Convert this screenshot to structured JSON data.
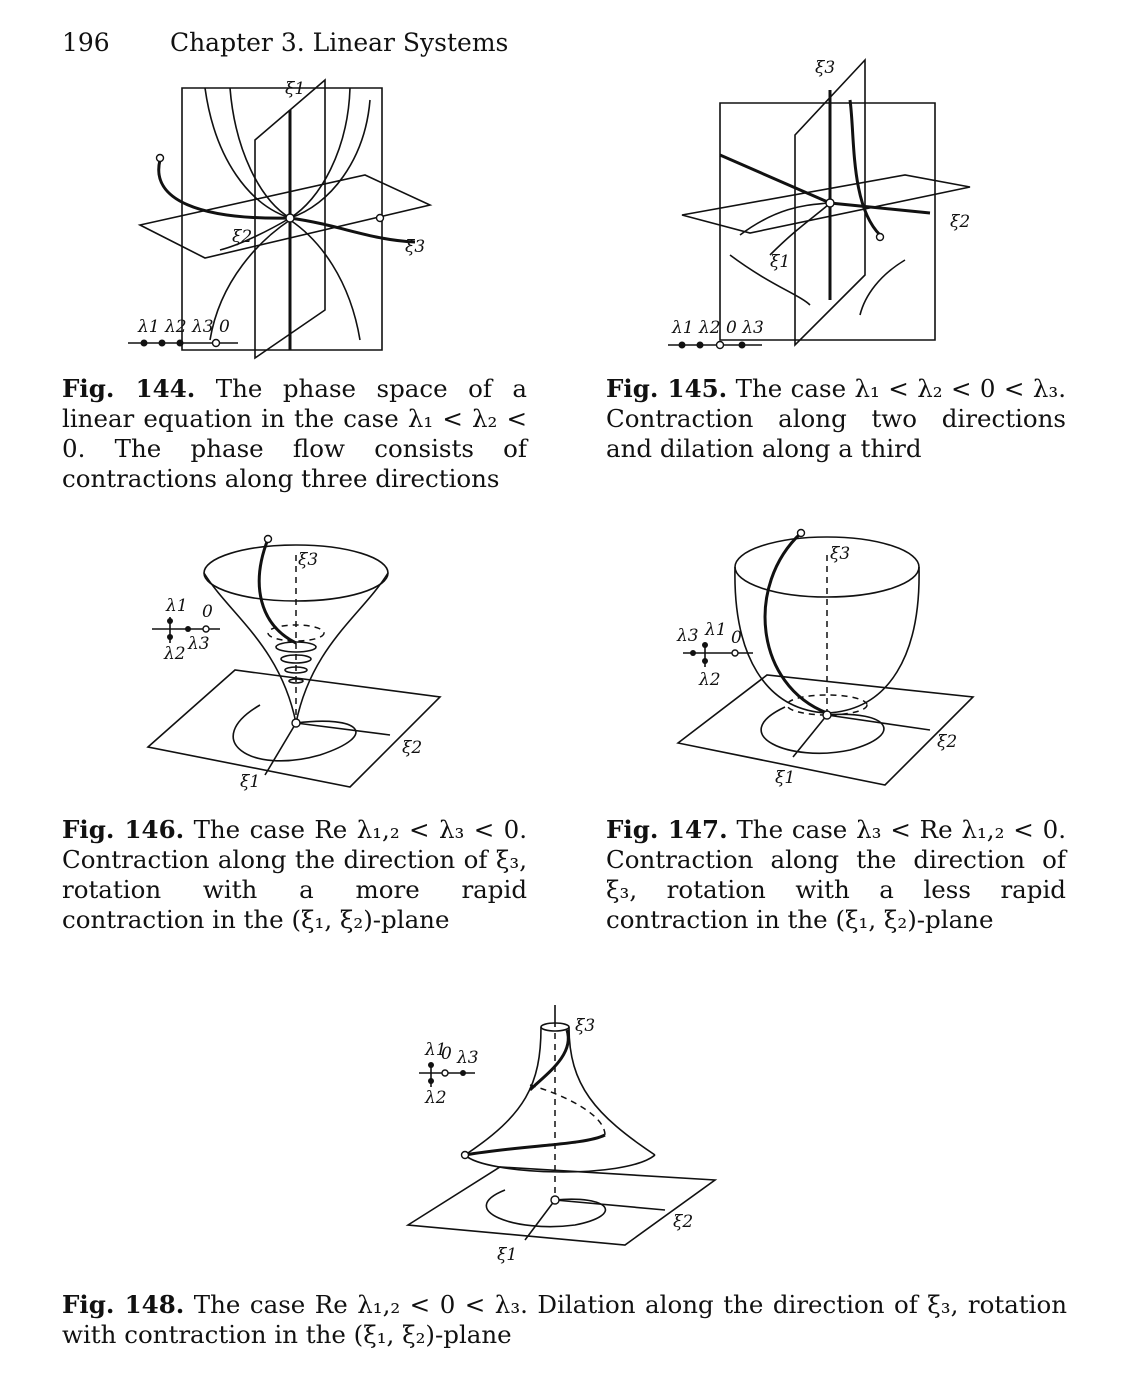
{
  "header": {
    "page_number": "196",
    "chapter": "Chapter 3. Linear Systems"
  },
  "figures": {
    "f144": {
      "label": "Fig. 144.",
      "text": "The phase space of a linear equation in the case λ₁ < λ₂ < 0. The phase flow consists of contractions along three directions",
      "axes": {
        "xi1": "ξ1",
        "xi2": "ξ2",
        "xi3": "ξ3"
      },
      "spectrum": "λ1 λ2 λ3 0"
    },
    "f145": {
      "label": "Fig. 145.",
      "text": "The case λ₁ < λ₂ < 0 < λ₃. Contraction along two directions and dilation along a third",
      "axes": {
        "xi1": "ξ1",
        "xi2": "ξ2",
        "xi3": "ξ3"
      },
      "spectrum": "λ1 λ2 0 λ3"
    },
    "f146": {
      "label": "Fig. 146.",
      "text": "The case Re λ₁,₂ < λ₃ < 0. Contraction along the direction of ξ₃, rotation with a more rapid contraction in the (ξ₁, ξ₂)-plane",
      "axes": {
        "xi1": "ξ1",
        "xi2": "ξ2",
        "xi3": "ξ3"
      },
      "spectrum": {
        "l1": "λ1",
        "zero": "0",
        "l2": "λ2",
        "l3": "λ3"
      }
    },
    "f147": {
      "label": "Fig. 147.",
      "text": "The case λ₃ < Re λ₁,₂ < 0. Contraction along the direction of ξ₃, rotation with a less rapid contraction in the (ξ₁, ξ₂)-plane",
      "axes": {
        "xi1": "ξ1",
        "xi2": "ξ2",
        "xi3": "ξ3"
      },
      "spectrum": {
        "l1": "λ1",
        "zero": "0",
        "l2": "λ2",
        "l3": "λ3"
      }
    },
    "f148": {
      "label": "Fig. 148.",
      "text": "The case Re λ₁,₂ < 0 < λ₃. Dilation along the direction of ξ₃, rotation with contraction in the (ξ₁, ξ₂)-plane",
      "axes": {
        "xi1": "ξ1",
        "xi2": "ξ2",
        "xi3": "ξ3"
      },
      "spectrum": {
        "l1": "λ1",
        "zero": "0",
        "l2": "λ2",
        "l3": "λ3"
      }
    }
  }
}
